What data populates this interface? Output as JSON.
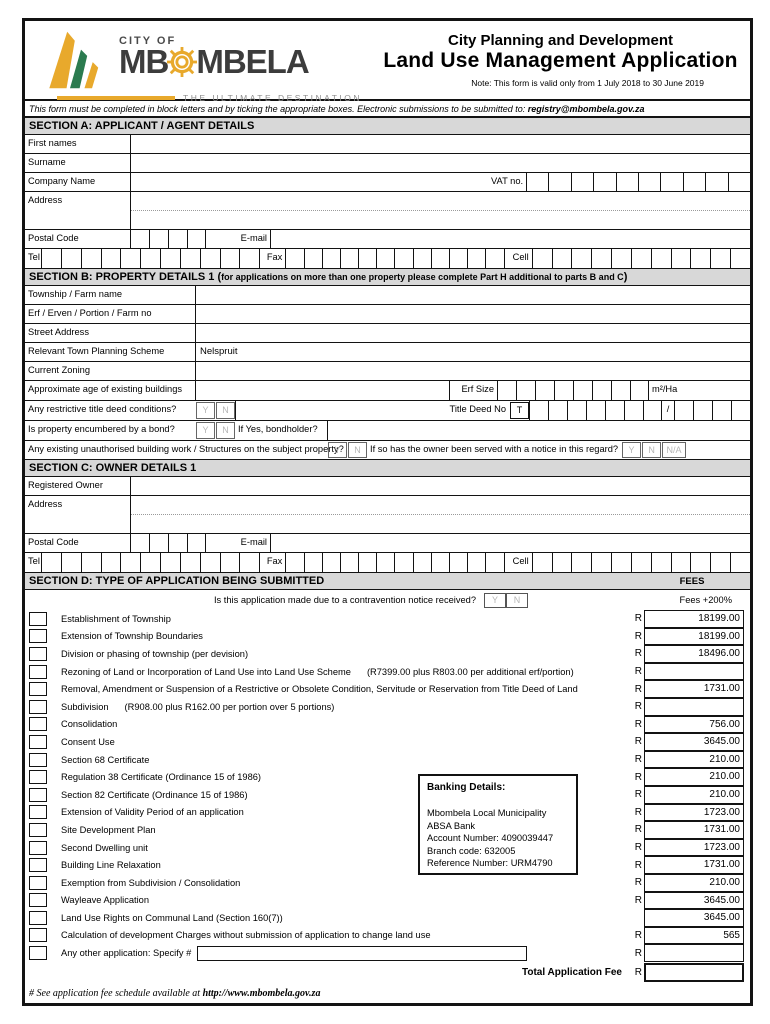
{
  "header": {
    "logo": {
      "city_of": "CITY OF",
      "name": "MBOMBELA",
      "name_left": "MB",
      "name_right": "MBELA",
      "tagline": "THE ULTIMATE DESTINATION",
      "yellow": "#e8a92c",
      "green": "#2b7b4f"
    },
    "title_line1": "City Planning and Development",
    "title_line2": "Land Use Management Application",
    "note": "Note: This form is valid only from 1 July 2018 to 30 June 2019"
  },
  "instruction": {
    "text": "This form must be completed in block letters and by ticking the appropriate boxes. Electronic submissions to be submitted to: ",
    "email": "registry@mbombela.gov.za"
  },
  "sectionA": {
    "title": "SECTION A: APPLICANT / AGENT DETAILS",
    "first_names": "First names",
    "surname": "Surname",
    "company": "Company Name",
    "vat": "VAT no.",
    "address": "Address",
    "postal": "Postal Code",
    "email": "E-mail",
    "tel": "Tel",
    "fax": "Fax",
    "cell": "Cell",
    "vat_boxes": 10,
    "postal_boxes": 4,
    "tel_boxes": 11,
    "fax_boxes": 12,
    "cell_boxes": 11
  },
  "sectionB": {
    "title": "SECTION B: PROPERTY DETAILS 1 (",
    "title_note": "for applications on more than one property please complete Part H additional to parts B and C",
    "title_close": ")",
    "township": "Township / Farm name",
    "erf": "Erf / Erven / Portion / Farm no",
    "street": "Street Address",
    "scheme": "Relevant Town Planning Scheme",
    "scheme_value": "Nelspruit",
    "zoning": "Current Zoning",
    "age": "Approximate age of existing buildings",
    "erf_size": "Erf Size",
    "erf_size_boxes": 8,
    "unit": "m²/Ha",
    "restrictive": "Any restrictive title deed conditions?",
    "title_deed": "Title Deed No",
    "t": "T",
    "deed_boxes": 7,
    "slash": "/",
    "deed_boxes2": 4,
    "bond": "Is property encumbered by a bond?",
    "bondholder": "If Yes, bondholder?",
    "unauthorised": "Any existing unauthorised building work / Structures on the subject property?",
    "notice": "If so has the owner been served with a notice in this regard?",
    "yes": "Y",
    "no": "N",
    "na": "N/A"
  },
  "sectionC": {
    "title": "SECTION C: OWNER DETAILS 1",
    "registered": "Registered Owner",
    "address": "Address",
    "postal": "Postal Code",
    "email": "E-mail",
    "tel": "Tel",
    "fax": "Fax",
    "cell": "Cell",
    "postal_boxes": 4,
    "tel_boxes": 11,
    "fax_boxes": 12,
    "cell_boxes": 11
  },
  "sectionD": {
    "title": "SECTION D: TYPE OF APPLICATION BEING SUBMITTED",
    "fees_header": "FEES",
    "contravention_question": "Is this application made due to a contravention notice received?",
    "yes": "Y",
    "no": "N",
    "fees_surcharge": "Fees +200%",
    "currency": "R",
    "rows": [
      {
        "label": "Establishment of Township",
        "r": "R",
        "fee": "18199.00"
      },
      {
        "label": "Extension of Township Boundaries",
        "r": "R",
        "fee": "18199.00"
      },
      {
        "label": "Division or phasing of township (per devision)",
        "r": "R",
        "fee": "18496.00"
      },
      {
        "label": "Rezoning of Land or Incorporation of Land Use into Land Use Scheme",
        "detail": "(R7399.00 plus R803.00 per additional erf/portion)",
        "r": "R",
        "fee": ""
      },
      {
        "label": "Removal, Amendment or Suspension of a Restrictive or Obsolete Condition, Servitude or Reservation from Title Deed of Land",
        "r": "R",
        "fee": "1731.00"
      },
      {
        "label": "Subdivision",
        "detail": "(R908.00 plus R162.00 per portion over 5 portions)",
        "r": "R",
        "fee": ""
      },
      {
        "label": "Consolidation",
        "r": "R",
        "fee": "756.00"
      },
      {
        "label": "Consent Use",
        "r": "R",
        "fee": "3645.00"
      },
      {
        "label": "Section 68 Certificate",
        "r": "R",
        "fee": "210.00"
      },
      {
        "label": "Regulation 38 Certificate (Ordinance 15 of 1986)",
        "r": "R",
        "fee": "210.00"
      },
      {
        "label": "Section 82 Certificate (Ordinance 15 of 1986)",
        "r": "R",
        "fee": "210.00"
      },
      {
        "label": "Extension of Validity Period of an application",
        "r": "R",
        "fee": "1723.00"
      },
      {
        "label": "Site Development Plan",
        "r": "R",
        "fee": "1731.00"
      },
      {
        "label": "Second Dwelling unit",
        "r": "R",
        "fee": "1723.00"
      },
      {
        "label": "Building Line Relaxation",
        "r": "R",
        "fee": "1731.00"
      },
      {
        "label": "Exemption from Subdivision / Consolidation",
        "r": "R",
        "fee": "210.00"
      },
      {
        "label": "Wayleave Application",
        "r": "R",
        "fee": "3645.00"
      },
      {
        "label": "Land Use Rights on Communal Land (Section 160(7))",
        "r": "",
        "fee": "3645.00"
      },
      {
        "label": "Calculation of development Charges without submission of application to change land use",
        "r": "R",
        "fee": "565"
      },
      {
        "label": "Any other application: Specify #",
        "input": true,
        "r": "R",
        "fee": ""
      }
    ],
    "total_label": "Total Application Fee",
    "banking": {
      "title": "Banking Details:",
      "lines": [
        "Mbombela Local Municipality",
        "ABSA Bank",
        "Account Number: 4090039447",
        "Branch code: 632005",
        "Reference Number: URM4790"
      ]
    }
  },
  "footer": {
    "text": "# See application fee schedule available at ",
    "url": "http://www.mbombela.gov.za"
  }
}
